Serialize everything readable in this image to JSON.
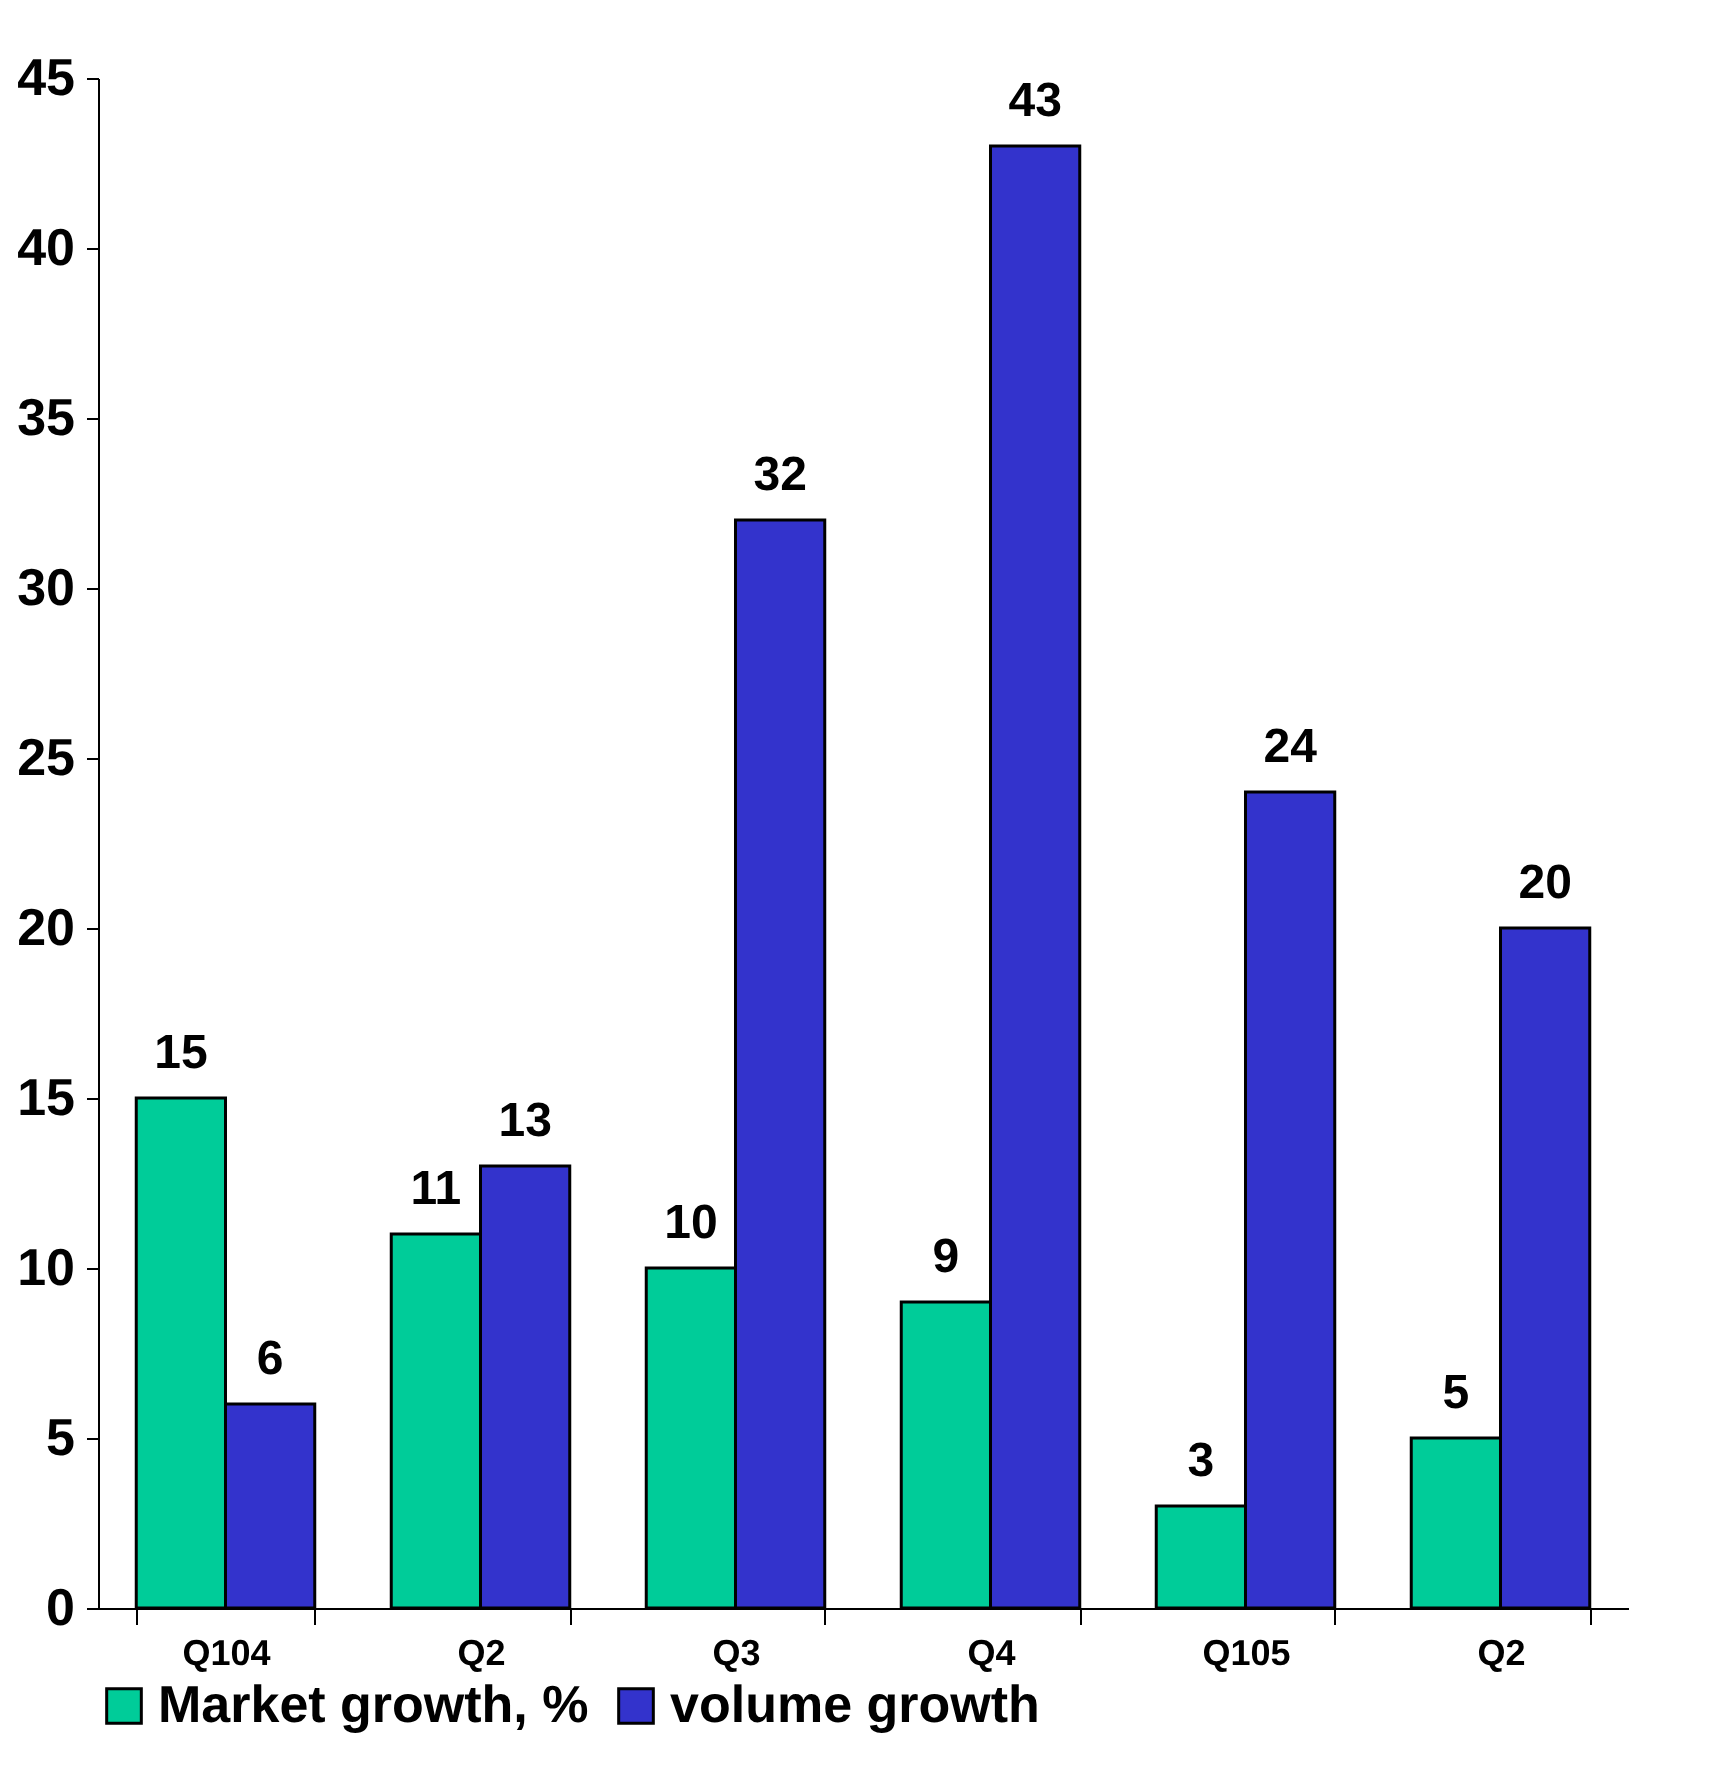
{
  "chart_data": {
    "type": "bar",
    "categories": [
      "Q104",
      "Q2",
      "Q3",
      "Q4",
      "Q105",
      "Q2"
    ],
    "series": [
      {
        "name": "Market growth, %",
        "color": "#00cc99",
        "values": [
          15,
          11,
          10,
          9,
          3,
          5
        ]
      },
      {
        "name": "volume growth",
        "color": "#3333cc",
        "values": [
          6,
          13,
          32,
          43,
          24,
          20
        ]
      }
    ],
    "ylim": [
      0,
      45
    ],
    "yticks": [
      0,
      5,
      10,
      15,
      20,
      25,
      30,
      35,
      40,
      45
    ],
    "grid": false,
    "legend": "bottom left",
    "data_labels": true
  }
}
